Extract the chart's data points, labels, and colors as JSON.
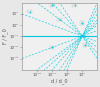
{
  "background_color": "#e8e8e8",
  "plot_bg": "#f0f0f0",
  "line_color": "#00c8e0",
  "figsize": [
    1.0,
    0.87
  ],
  "dpi": 100,
  "xlim": [
    -3,
    2
  ],
  "ylim": [
    -4,
    2
  ],
  "xlabel": "d / d_0",
  "ylabel": "F / F_0",
  "xtick_vals": [
    -2,
    -1,
    0,
    1
  ],
  "ytick_vals": [
    -3,
    -2,
    -1,
    0,
    1
  ],
  "xtick_labels": [
    "10⁻²",
    "10⁻¹",
    "10⁰",
    "10¹"
  ],
  "ytick_labels": [
    "10⁻³",
    "10⁻²",
    "10⁻¹",
    "10⁰",
    "10¹"
  ],
  "fan_lines": [
    {
      "slope": 3.0,
      "intercept": 3.0
    },
    {
      "slope": 2.5,
      "intercept": 2.5
    },
    {
      "slope": 2.0,
      "intercept": 2.0
    },
    {
      "slope": 1.5,
      "intercept": 1.5
    },
    {
      "slope": 1.2,
      "intercept": 1.2
    },
    {
      "slope": 1.0,
      "intercept": 1.0
    },
    {
      "slope": 0.5,
      "intercept": 0.5
    },
    {
      "slope": -0.5,
      "intercept": -0.5
    },
    {
      "slope": -1.0,
      "intercept": -1.0
    },
    {
      "slope": -1.5,
      "intercept": -1.5
    }
  ],
  "horiz_lines": [
    {
      "y": -1.0,
      "linewidth": 1.0,
      "style": "-"
    },
    {
      "y": -0.7,
      "linewidth": 0.6,
      "style": "--"
    },
    {
      "y": -1.3,
      "linewidth": 0.6,
      "style": "--"
    }
  ],
  "annot_color": "#555555",
  "border_color": "#999999",
  "tick_fontsize": 3.0,
  "label_fontsize": 3.5
}
